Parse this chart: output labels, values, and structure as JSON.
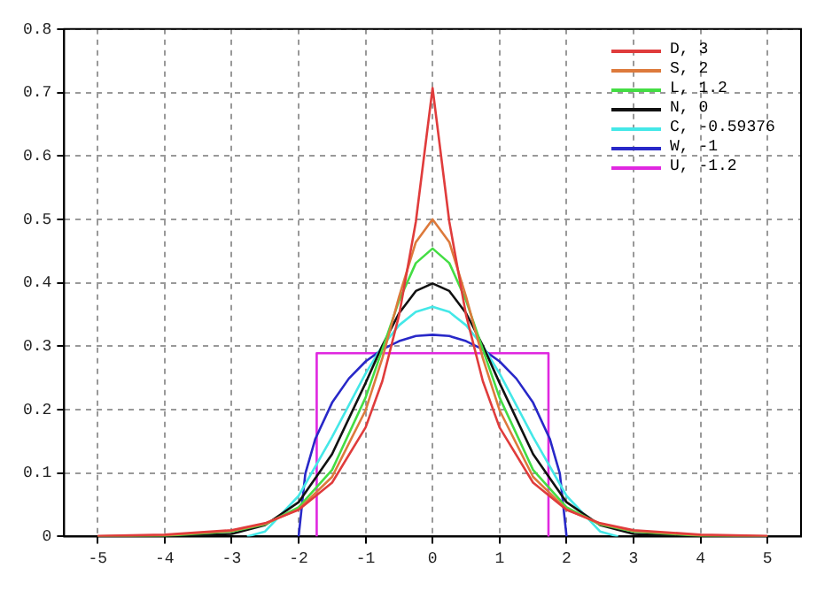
{
  "chart_data": {
    "type": "line",
    "xlim": [
      -5.5,
      5.5
    ],
    "xticks": [
      -5,
      -4,
      -3,
      -2,
      -1,
      0,
      1,
      2,
      3,
      4,
      5
    ],
    "ylim": [
      0,
      0.8
    ],
    "yticks": [
      0,
      0.1,
      0.2,
      0.3,
      0.4,
      0.5,
      0.6,
      0.7,
      0.8
    ],
    "grid": true,
    "legend": "top right",
    "series": [
      {
        "name": "D, 3",
        "color": "#e03c3c",
        "x": [
          -5,
          -4,
          -3,
          -2.5,
          -2,
          -1.5,
          -1,
          -0.75,
          -0.5,
          -0.25,
          0,
          0.25,
          0.5,
          0.75,
          1,
          1.5,
          2,
          2.5,
          3,
          4,
          5
        ],
        "values": [
          0.001,
          0.003,
          0.01,
          0.021,
          0.042,
          0.085,
          0.172,
          0.245,
          0.349,
          0.496,
          0.707,
          0.496,
          0.349,
          0.245,
          0.172,
          0.085,
          0.042,
          0.021,
          0.01,
          0.003,
          0.001
        ]
      },
      {
        "name": "S, 2",
        "color": "#dd7a3c",
        "x": [
          -5,
          -4,
          -3,
          -2.5,
          -2,
          -1.5,
          -1,
          -0.75,
          -0.5,
          -0.25,
          0,
          0.25,
          0.5,
          0.75,
          1,
          1.5,
          2,
          2.5,
          3,
          4,
          5
        ],
        "values": [
          0,
          0.002,
          0.009,
          0.02,
          0.043,
          0.094,
          0.199,
          0.281,
          0.378,
          0.464,
          0.5,
          0.464,
          0.378,
          0.281,
          0.199,
          0.094,
          0.043,
          0.02,
          0.009,
          0.002,
          0
        ]
      },
      {
        "name": "L, 1.2",
        "color": "#44dd44",
        "x": [
          -5,
          -4,
          -3,
          -2.5,
          -2,
          -1.5,
          -1,
          -0.75,
          -0.5,
          -0.25,
          0,
          0.25,
          0.5,
          0.75,
          1,
          1.5,
          2,
          2.5,
          3,
          4,
          5
        ],
        "values": [
          0,
          0.001,
          0.008,
          0.019,
          0.046,
          0.105,
          0.219,
          0.295,
          0.372,
          0.431,
          0.454,
          0.431,
          0.372,
          0.295,
          0.219,
          0.105,
          0.046,
          0.019,
          0.008,
          0.001,
          0
        ]
      },
      {
        "name": "N, 0",
        "color": "#111111",
        "x": [
          -5,
          -4,
          -3,
          -2.5,
          -2,
          -1.5,
          -1,
          -0.75,
          -0.5,
          -0.25,
          0,
          0.25,
          0.5,
          0.75,
          1,
          1.5,
          2,
          2.5,
          3,
          4,
          5
        ],
        "values": [
          0,
          0,
          0.004,
          0.018,
          0.054,
          0.13,
          0.242,
          0.301,
          0.352,
          0.387,
          0.399,
          0.387,
          0.352,
          0.301,
          0.242,
          0.13,
          0.054,
          0.018,
          0.004,
          0,
          0
        ]
      },
      {
        "name": "C, -0.59376",
        "color": "#44e8e8",
        "x": [
          -2.77,
          -2.5,
          -2,
          -1.5,
          -1,
          -0.75,
          -0.5,
          -0.25,
          0,
          0.25,
          0.5,
          0.75,
          1,
          1.5,
          2,
          2.5,
          2.77
        ],
        "values": [
          0,
          0.008,
          0.064,
          0.157,
          0.257,
          0.3,
          0.333,
          0.354,
          0.362,
          0.354,
          0.333,
          0.3,
          0.257,
          0.157,
          0.064,
          0.008,
          0
        ]
      },
      {
        "name": "W, -1",
        "color": "#2828c8",
        "x": [
          -2,
          -1.9,
          -1.75,
          -1.5,
          -1.25,
          -1,
          -0.75,
          -0.5,
          -0.25,
          0,
          0.25,
          0.5,
          0.75,
          1,
          1.25,
          1.5,
          1.75,
          1.9,
          2
        ],
        "values": [
          0,
          0.099,
          0.154,
          0.211,
          0.249,
          0.276,
          0.295,
          0.308,
          0.316,
          0.318,
          0.316,
          0.308,
          0.295,
          0.276,
          0.249,
          0.211,
          0.154,
          0.099,
          0
        ]
      },
      {
        "name": "U, -1.2",
        "color": "#e028e0",
        "x": [
          -1.73,
          -1.73,
          1.73,
          1.73
        ],
        "values": [
          0,
          0.289,
          0.289,
          0
        ]
      }
    ]
  }
}
